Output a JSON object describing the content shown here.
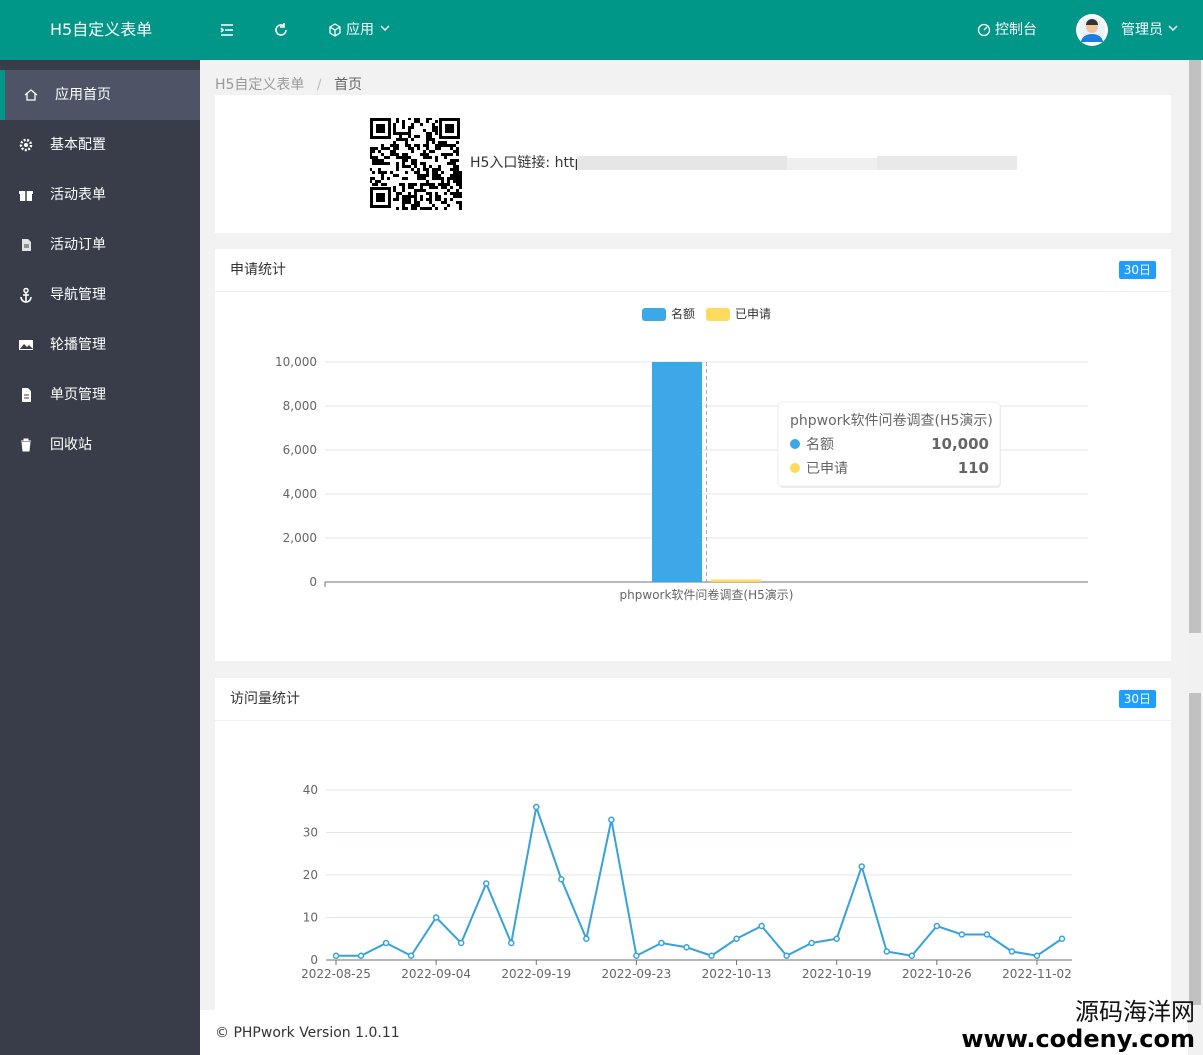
{
  "header": {
    "brand": "H5自定义表单",
    "nav": [
      "应用"
    ],
    "console": "控制台",
    "user": "管理员"
  },
  "sidebar": {
    "items": [
      "应用首页",
      "基本配置",
      "活动表单",
      "活动订单",
      "导航管理",
      "轮播管理",
      "单页管理",
      "回收站"
    ],
    "active": 0
  },
  "breadcrumb": {
    "items": [
      "H5自定义表单",
      "首页"
    ],
    "separator": "/"
  },
  "entry": {
    "label": "H5入口链接: http"
  },
  "chart_data": [
    {
      "type": "bar",
      "title": "申请统计",
      "range_label": "30日",
      "categories": [
        "phpwork软件问卷调查(H5演示)"
      ],
      "series": [
        {
          "name": "名额",
          "color": "#3ca8e8",
          "values": [
            10000
          ],
          "value_labels": [
            "10,000"
          ]
        },
        {
          "name": "已申请",
          "color": "#fddb5f",
          "values": [
            110
          ],
          "value_labels": [
            "110"
          ]
        }
      ],
      "ylim": [
        0,
        10000
      ],
      "yticks": [
        0,
        {
          "value": 2000,
          "label": "2,000"
        },
        {
          "value": 4000,
          "label": "4,000"
        },
        {
          "value": 6000,
          "label": "6,000"
        },
        {
          "value": 8000,
          "label": "8,000"
        },
        {
          "value": 10000,
          "label": "10,000"
        }
      ],
      "grid": true
    },
    {
      "type": "line",
      "title": "访问量统计",
      "range_label": "30日",
      "color": "#37a2da",
      "categories": [
        "2022-08-25",
        null,
        null,
        null,
        "2022-09-04",
        null,
        null,
        null,
        "2022-09-19",
        null,
        null,
        null,
        "2022-09-23",
        null,
        null,
        null,
        "2022-10-13",
        null,
        null,
        null,
        "2022-10-19",
        null,
        null,
        null,
        "2022-10-26",
        null,
        null,
        null,
        "2022-11-02",
        null
      ],
      "values": [
        1,
        1,
        4,
        1,
        10,
        4,
        18,
        4,
        36,
        19,
        5,
        33,
        1,
        4,
        3,
        1,
        5,
        8,
        1,
        4,
        5,
        22,
        2,
        1,
        8,
        6,
        6,
        2,
        1,
        5
      ],
      "ylim": [
        0,
        40
      ],
      "yticks": [
        0,
        10,
        20,
        30,
        40
      ],
      "grid": true
    }
  ],
  "footer": {
    "text": "© PHPwork Version 1.0.11"
  },
  "watermark": {
    "title": "源码海洋网",
    "url": "www.codeny.com"
  }
}
